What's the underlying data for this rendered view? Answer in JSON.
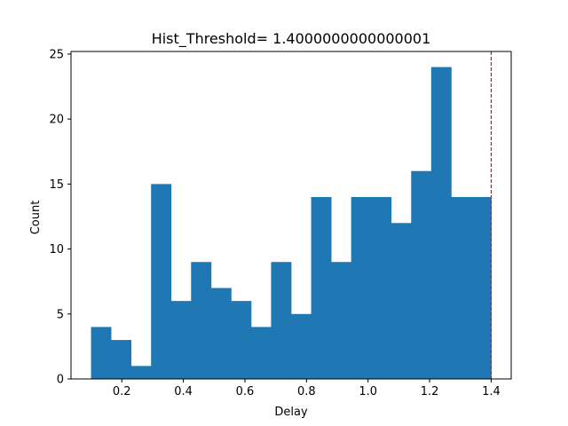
{
  "chart_data": {
    "type": "bar",
    "title": "Hist_Threshold= 1.4000000000000001",
    "xlabel": "Delay",
    "ylabel": "Count",
    "bin_edges": [
      0.1,
      0.165,
      0.23,
      0.295,
      0.36,
      0.425,
      0.49,
      0.555,
      0.62,
      0.685,
      0.75,
      0.815,
      0.88,
      0.945,
      1.01,
      1.075,
      1.14,
      1.205,
      1.27,
      1.335,
      1.4
    ],
    "values": [
      4,
      3,
      1,
      15,
      6,
      9,
      7,
      6,
      4,
      9,
      5,
      14,
      9,
      14,
      14,
      12,
      16,
      24,
      14,
      14
    ],
    "xlim": [
      0.035,
      1.465
    ],
    "ylim": [
      0,
      25.2
    ],
    "xticks": [
      "0.2",
      "0.4",
      "0.6",
      "0.8",
      "1.0",
      "1.2",
      "1.4"
    ],
    "xtick_values": [
      0.2,
      0.4,
      0.6,
      0.8,
      1.0,
      1.2,
      1.4
    ],
    "yticks": [
      "0",
      "5",
      "10",
      "15",
      "20",
      "25"
    ],
    "ytick_values": [
      0,
      5,
      10,
      15,
      20,
      25
    ],
    "threshold": 1.4,
    "bar_color": "#1f77b4",
    "threshold_color": "#ff0000",
    "grid": false,
    "legend": "none"
  }
}
